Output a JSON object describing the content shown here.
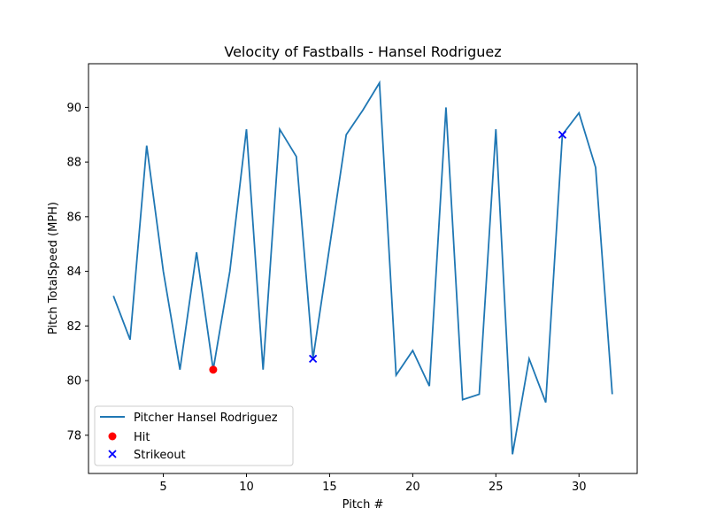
{
  "chart_data": {
    "type": "line",
    "title": "Velocity of Fastballs - Hansel Rodriguez",
    "xlabel": "Pitch #",
    "ylabel": "Pitch TotalSpeed (MPH)",
    "xlim": [
      0.5,
      33.5
    ],
    "ylim": [
      76.6,
      91.6
    ],
    "xticks": [
      5,
      10,
      15,
      20,
      25,
      30
    ],
    "yticks": [
      78,
      80,
      82,
      84,
      86,
      88,
      90
    ],
    "series": [
      {
        "name": "Pitcher Hansel Rodriguez",
        "color": "#1f77b4",
        "x": [
          2,
          3,
          4,
          5,
          6,
          7,
          8,
          9,
          10,
          11,
          12,
          13,
          14,
          15,
          16,
          17,
          18,
          19,
          20,
          21,
          22,
          23,
          24,
          25,
          26,
          27,
          28,
          29,
          30,
          31,
          32
        ],
        "y": [
          83.1,
          81.5,
          88.6,
          84.0,
          80.4,
          84.7,
          80.4,
          84.0,
          89.2,
          80.4,
          89.2,
          88.2,
          80.8,
          84.9,
          89.0,
          89.9,
          90.9,
          80.2,
          81.1,
          79.8,
          90.0,
          79.3,
          79.5,
          89.2,
          77.3,
          80.8,
          79.2,
          89.0,
          89.8,
          87.8,
          79.5
        ]
      }
    ],
    "markers": [
      {
        "name": "Hit",
        "marker": "circle",
        "color": "#ff0000",
        "points": [
          {
            "x": 8,
            "y": 80.4
          }
        ]
      },
      {
        "name": "Strikeout",
        "marker": "x",
        "color": "#0000ff",
        "points": [
          {
            "x": 14,
            "y": 80.8
          },
          {
            "x": 29,
            "y": 89.0
          }
        ]
      }
    ],
    "legend_position": "lower-left",
    "grid": false
  }
}
